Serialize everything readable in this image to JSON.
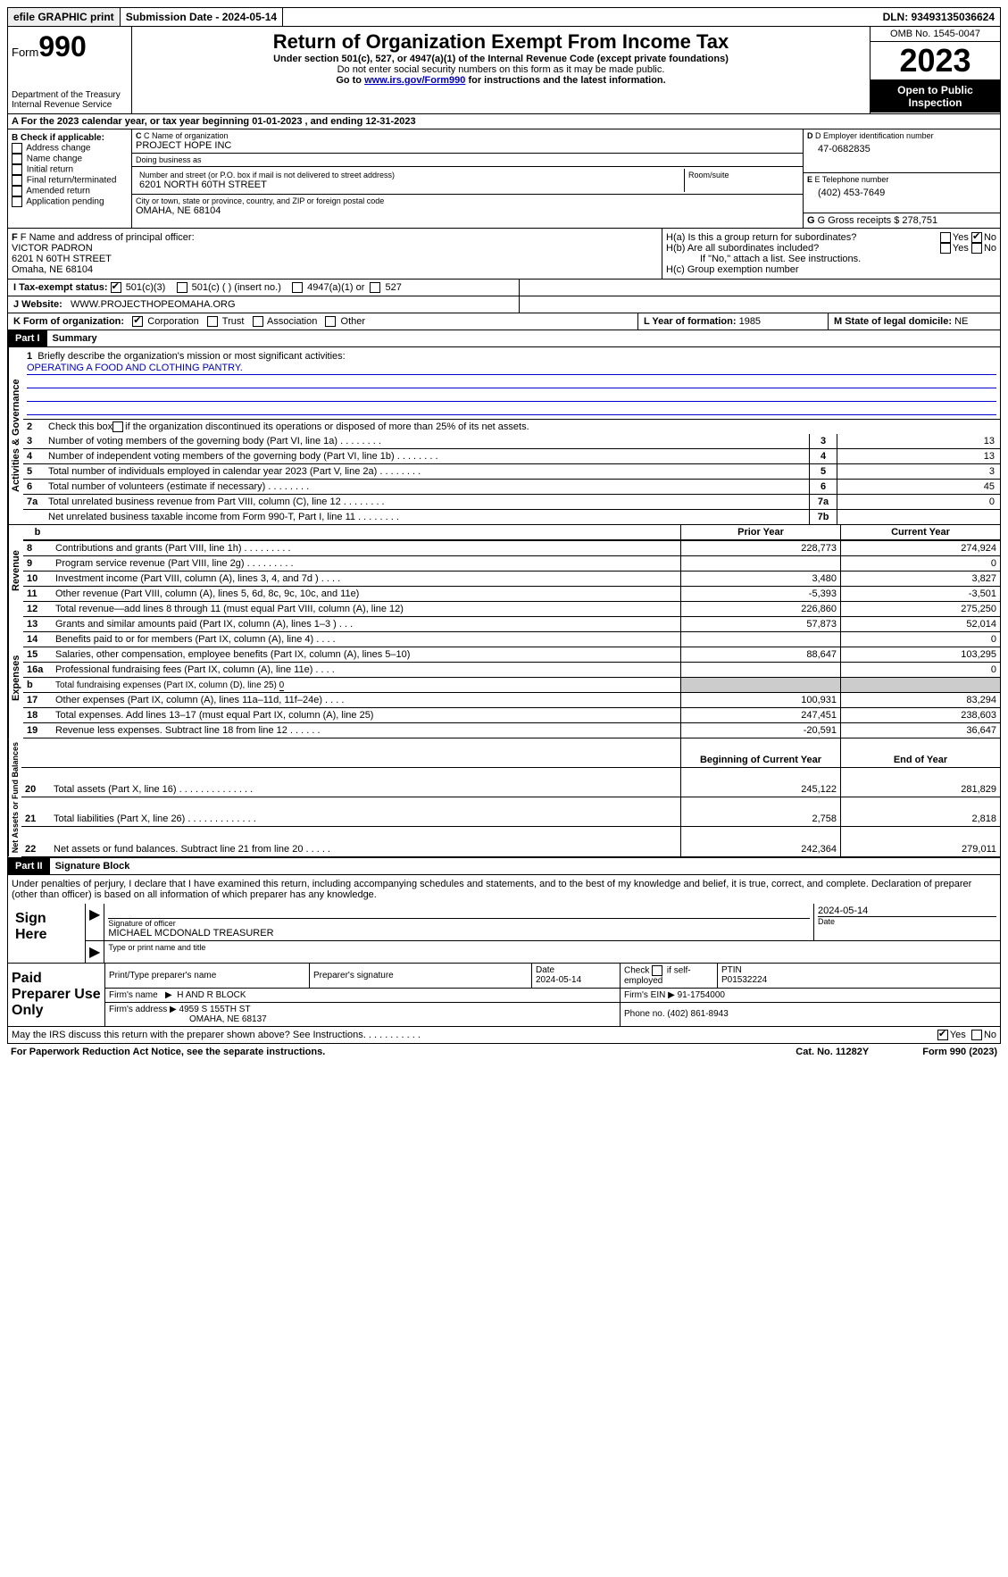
{
  "topbar": {
    "efile": "efile GRAPHIC print",
    "submission": "Submission Date - 2024-05-14",
    "dln": "DLN: 93493135036624"
  },
  "header": {
    "form_prefix": "Form",
    "form_number": "990",
    "title": "Return of Organization Exempt From Income Tax",
    "subtitle": "Under section 501(c), 527, or 4947(a)(1) of the Internal Revenue Code (except private foundations)",
    "ssn_note": "Do not enter social security numbers on this form as it may be made public.",
    "goto_prefix": "Go to ",
    "goto_link": "www.irs.gov/Form990",
    "goto_suffix": " for instructions and the latest information.",
    "dept": "Department of the Treasury\nInternal Revenue Service",
    "omb": "OMB No. 1545-0047",
    "year": "2023",
    "open_public": "Open to Public Inspection"
  },
  "row_a": "A For the 2023 calendar year, or tax year beginning 01-01-2023   , and ending 12-31-2023",
  "section_b": {
    "header": "B Check if applicable:",
    "items": [
      "Address change",
      "Name change",
      "Initial return",
      "Final return/terminated",
      "Amended return",
      "Application pending"
    ]
  },
  "section_c": {
    "name_label": "C Name of organization",
    "name": "PROJECT HOPE INC",
    "dba_label": "Doing business as",
    "dba": "",
    "street_label": "Number and street (or P.O. box if mail is not delivered to street address)",
    "street": "6201 NORTH 60TH STREET",
    "room_label": "Room/suite",
    "room": "",
    "city_label": "City or town, state or province, country, and ZIP or foreign postal code",
    "city": "OMAHA, NE  68104"
  },
  "section_d": {
    "label": "D Employer identification number",
    "value": "47-0682835"
  },
  "section_e": {
    "label": "E Telephone number",
    "value": "(402) 453-7649"
  },
  "section_g": {
    "label": "G Gross receipts $",
    "value": "278,751"
  },
  "section_f": {
    "label": "F  Name and address of principal officer:",
    "name": "VICTOR PADRON",
    "addr1": "6201 N 60TH STREET",
    "addr2": "Omaha, NE  68104"
  },
  "section_h": {
    "ha": "H(a)  Is this a group return for subordinates?",
    "hb": "H(b)  Are all subordinates included?",
    "hb_note": "If \"No,\" attach a list. See instructions.",
    "hc": "H(c)  Group exemption number",
    "yes": "Yes",
    "no": "No"
  },
  "row_i": {
    "label": "I   Tax-exempt status:",
    "opt1": "501(c)(3)",
    "opt2": "501(c) (  ) (insert no.)",
    "opt3": "4947(a)(1) or",
    "opt4": "527"
  },
  "row_j": {
    "label": "J   Website:",
    "value": "WWW.PROJECTHOPEOMAHA.ORG"
  },
  "row_k": {
    "label": "K Form of organization:",
    "opts": [
      "Corporation",
      "Trust",
      "Association",
      "Other"
    ]
  },
  "row_l": {
    "label": "L Year of formation:",
    "value": "1985"
  },
  "row_m": {
    "label": "M State of legal domicile:",
    "value": "NE"
  },
  "part1": {
    "label": "Part I",
    "title": "Summary"
  },
  "governance": {
    "label": "Activities & Governance",
    "line1": {
      "num": "1",
      "text": "Briefly describe the organization's mission or most significant activities:",
      "value": "OPERATING A FOOD AND CLOTHING PANTRY."
    },
    "line2": {
      "num": "2",
      "text_a": "Check this box ",
      "text_b": " if the organization discontinued its operations or disposed of more than 25% of its net assets."
    },
    "rows": [
      {
        "num": "3",
        "text": "Number of voting members of the governing body (Part VI, line 1a)",
        "box": "3",
        "val": "13"
      },
      {
        "num": "4",
        "text": "Number of independent voting members of the governing body (Part VI, line 1b)",
        "box": "4",
        "val": "13"
      },
      {
        "num": "5",
        "text": "Total number of individuals employed in calendar year 2023 (Part V, line 2a)",
        "box": "5",
        "val": "3"
      },
      {
        "num": "6",
        "text": "Total number of volunteers (estimate if necessary)",
        "box": "6",
        "val": "45"
      },
      {
        "num": "7a",
        "text": "Total unrelated business revenue from Part VIII, column (C), line 12",
        "box": "7a",
        "val": "0"
      },
      {
        "num": "",
        "text": "Net unrelated business taxable income from Form 990-T, Part I, line 11",
        "box": "7b",
        "val": ""
      }
    ]
  },
  "rev_header": {
    "prior": "Prior Year",
    "current": "Current Year"
  },
  "revenue": {
    "label": "Revenue",
    "rows": [
      {
        "num": "8",
        "text": "Contributions and grants (Part VIII, line 1h)   .   .   .   .   .   .   .   .   .",
        "prior": "228,773",
        "current": "274,924"
      },
      {
        "num": "9",
        "text": "Program service revenue (Part VIII, line 2g)   .   .   .   .   .   .   .   .   .",
        "prior": "",
        "current": "0"
      },
      {
        "num": "10",
        "text": "Investment income (Part VIII, column (A), lines 3, 4, and 7d )   .   .   .   .",
        "prior": "3,480",
        "current": "3,827"
      },
      {
        "num": "11",
        "text": "Other revenue (Part VIII, column (A), lines 5, 6d, 8c, 9c, 10c, and 11e)",
        "prior": "-5,393",
        "current": "-3,501"
      },
      {
        "num": "12",
        "text": "Total revenue—add lines 8 through 11 (must equal Part VIII, column (A), line 12)",
        "prior": "226,860",
        "current": "275,250"
      }
    ]
  },
  "expenses": {
    "label": "Expenses",
    "rows": [
      {
        "num": "13",
        "text": "Grants and similar amounts paid (Part IX, column (A), lines 1–3 )   .   .   .",
        "prior": "57,873",
        "current": "52,014"
      },
      {
        "num": "14",
        "text": "Benefits paid to or for members (Part IX, column (A), line 4)   .   .   .   .",
        "prior": "",
        "current": "0"
      },
      {
        "num": "15",
        "text": "Salaries, other compensation, employee benefits (Part IX, column (A), lines 5–10)",
        "prior": "88,647",
        "current": "103,295"
      },
      {
        "num": "16a",
        "text": "Professional fundraising fees (Part IX, column (A), line 11e)   .   .   .   .",
        "prior": "",
        "current": "0"
      },
      {
        "num": "b",
        "text_a": "Total fundraising expenses (Part IX, column (D), line 25) ",
        "text_u": "0",
        "shaded": true
      },
      {
        "num": "17",
        "text": "Other expenses (Part IX, column (A), lines 11a–11d, 11f–24e)   .   .   .   .",
        "prior": "100,931",
        "current": "83,294"
      },
      {
        "num": "18",
        "text": "Total expenses. Add lines 13–17 (must equal Part IX, column (A), line 25)",
        "prior": "247,451",
        "current": "238,603"
      },
      {
        "num": "19",
        "text": "Revenue less expenses. Subtract line 18 from line 12   .   .   .   .   .   .",
        "prior": "-20,591",
        "current": "36,647"
      }
    ]
  },
  "net_header": {
    "beg": "Beginning of Current Year",
    "end": "End of Year"
  },
  "netassets": {
    "label": "Net Assets or Fund Balances",
    "rows": [
      {
        "num": "20",
        "text": "Total assets (Part X, line 16)   .   .   .   .   .   .   .   .   .   .   .   .   .   .",
        "prior": "245,122",
        "current": "281,829"
      },
      {
        "num": "21",
        "text": "Total liabilities (Part X, line 26)   .   .   .   .   .   .   .   .   .   .   .   .   .",
        "prior": "2,758",
        "current": "2,818"
      },
      {
        "num": "22",
        "text": "Net assets or fund balances. Subtract line 21 from line 20   .   .   .   .   .",
        "prior": "242,364",
        "current": "279,011"
      }
    ]
  },
  "part2": {
    "label": "Part II",
    "title": "Signature Block"
  },
  "sig_text": "Under penalties of perjury, I declare that I have examined this return, including accompanying schedules and statements, and to the best of my knowledge and belief, it is true, correct, and complete. Declaration of preparer (other than officer) is based on all information of which preparer has any knowledge.",
  "sign": {
    "label": "Sign Here",
    "sig_of_officer": "Signature of officer",
    "officer": "MICHAEL MCDONALD  TREASURER",
    "date_label": "Date",
    "date": "2024-05-14",
    "type_name": "Type or print name and title"
  },
  "preparer": {
    "label": "Paid Preparer Use Only",
    "print_name": "Print/Type preparer's name",
    "prep_sig": "Preparer's signature",
    "date_label": "Date",
    "date": "2024-05-14",
    "check_label": "Check",
    "check_if": "if self-employed",
    "ptin_label": "PTIN",
    "ptin": "P01532224",
    "firm_name_label": "Firm's name",
    "firm_name": "H AND R BLOCK",
    "firm_ein_label": "Firm's EIN",
    "firm_ein": "91-1754000",
    "firm_addr_label": "Firm's address",
    "firm_addr1": "4959 S 155TH ST",
    "firm_addr2": "OMAHA, NE  68137",
    "phone_label": "Phone no.",
    "phone": "(402) 861-8943"
  },
  "discuss": {
    "text": "May the IRS discuss this return with the preparer shown above? See Instructions.   .   .   .   .   .   .   .   .   .   .",
    "yes": "Yes",
    "no": "No"
  },
  "footer": {
    "paperwork": "For Paperwork Reduction Act Notice, see the separate instructions.",
    "cat": "Cat. No. 11282Y",
    "form": "Form 990 (2023)"
  }
}
